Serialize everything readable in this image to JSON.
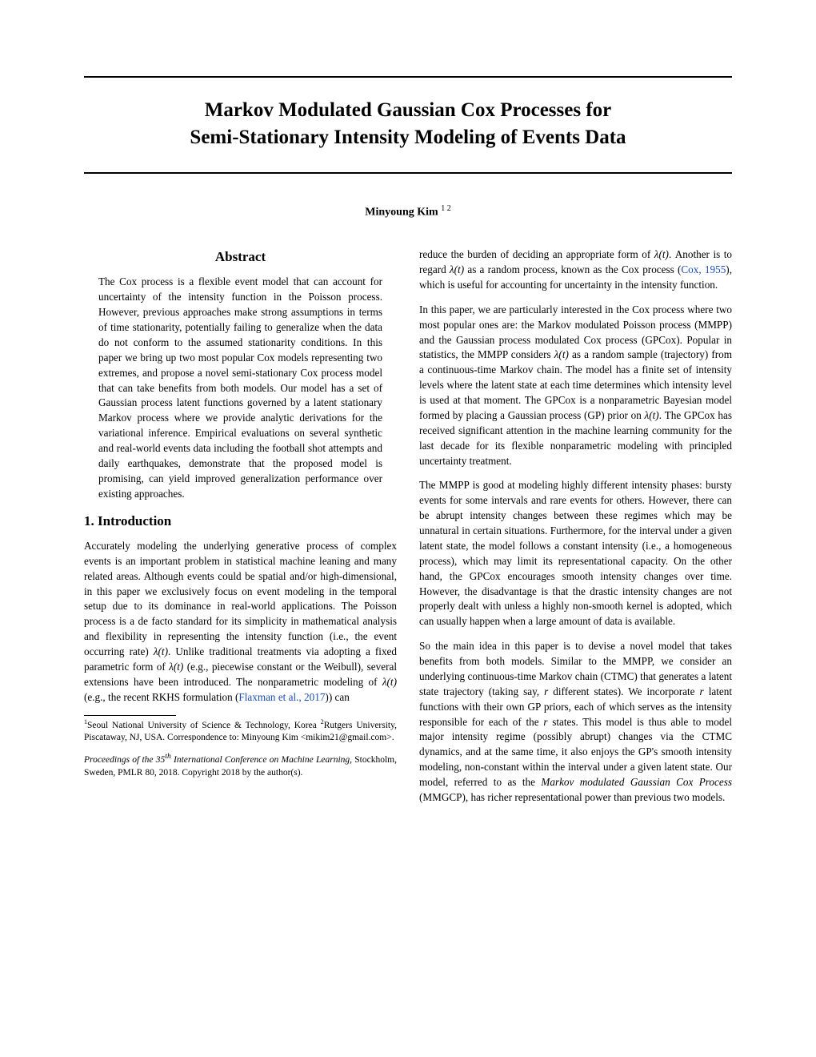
{
  "title_line1": "Markov Modulated Gaussian Cox Processes for",
  "title_line2": "Semi-Stationary Intensity Modeling of Events Data",
  "author": "Minyoung Kim",
  "author_affil": "1 2",
  "abstract_heading": "Abstract",
  "abstract_body": "The Cox process is a flexible event model that can account for uncertainty of the intensity function in the Poisson process. However, previous approaches make strong assumptions in terms of time stationarity, potentially failing to generalize when the data do not conform to the assumed stationarity conditions. In this paper we bring up two most popular Cox models representing two extremes, and propose a novel semi-stationary Cox process model that can take benefits from both models. Our model has a set of Gaussian process latent functions governed by a latent stationary Markov process where we provide analytic derivations for the variational inference. Empirical evaluations on several synthetic and real-world events data including the football shot attempts and daily earthquakes, demonstrate that the proposed model is promising, can yield improved generalization performance over existing approaches.",
  "section1_heading": "1. Introduction",
  "left_para1_a": "Accurately modeling the underlying generative process of complex events is an important problem in statistical machine leaning and many related areas. Although events could be spatial and/or high-dimensional, in this paper we exclusively focus on event modeling in the temporal setup due to its dominance in real-world applications. The Poisson process is a de facto standard for its simplicity in mathematical analysis and flexibility in representing the intensity function (i.e., the event occurring rate) ",
  "left_para1_b": ". Unlike traditional treatments via adopting a fixed parametric form of ",
  "left_para1_c": " (e.g., piecewise constant or the Weibull), several extensions have been introduced. The nonparametric modeling of ",
  "left_para1_d": " (e.g., the recent RKHS formulation (",
  "left_para1_cite": "Flaxman et al., 2017",
  "left_para1_e": ")) can",
  "footnote_text_a": "Seoul National University of Science & Technology, Korea ",
  "footnote_text_b": "Rutgers University, Piscataway, NJ, USA. Correspondence to: Minyoung Kim <mikim21@gmail.com>.",
  "proceedings_a": "Proceedings of the ",
  "proceedings_b": " International Conference on Machine Learning",
  "proceedings_c": ", Stockholm, Sweden, PMLR 80, 2018. Copyright 2018 by the author(s).",
  "proceedings_num": "35",
  "proceedings_th": "th",
  "right_para1_a": "reduce the burden of deciding an appropriate form of ",
  "right_para1_b": ". Another is to regard ",
  "right_para1_c": " as a random process, known as the Cox process (",
  "right_para1_cite": "Cox, 1955",
  "right_para1_d": "), which is useful for accounting for uncertainty in the intensity function.",
  "right_para2_a": "In this paper, we are particularly interested in the Cox process where two most popular ones are: the Markov modulated Poisson process (MMPP) and the Gaussian process modulated Cox process (GPCox). Popular in statistics, the MMPP considers ",
  "right_para2_b": " as a random sample (trajectory) from a continuous-time Markov chain. The model has a finite set of intensity levels where the latent state at each time determines which intensity level is used at that moment. The GPCox is a nonparametric Bayesian model formed by placing a Gaussian process (GP) prior on ",
  "right_para2_c": ". The GPCox has received significant attention in the machine learning community for the last decade for its flexible nonparametric modeling with principled uncertainty treatment.",
  "right_para3": "The MMPP is good at modeling highly different intensity phases: bursty events for some intervals and rare events for others. However, there can be abrupt intensity changes between these regimes which may be unnatural in certain situations. Furthermore, for the interval under a given latent state, the model follows a constant intensity (i.e., a homogeneous process), which may limit its representational capacity. On the other hand, the GPCox encourages smooth intensity changes over time. However, the disadvantage is that the drastic intensity changes are not properly dealt with unless a highly non-smooth kernel is adopted, which can usually happen when a large amount of data is available.",
  "right_para4_a": "So the main idea in this paper is to devise a novel model that takes benefits from both models. Similar to the MMPP, we consider an underlying continuous-time Markov chain (CTMC) that generates a latent state trajectory (taking say, ",
  "right_para4_b": " different states). We incorporate ",
  "right_para4_c": " latent functions with their own GP priors, each of which serves as the intensity responsible for each of the ",
  "right_para4_d": " states. This model is thus able to model major intensity regime (possibly abrupt) changes via the CTMC dynamics, and at the same time, it also enjoys the GP's smooth intensity modeling, non-constant within the interval under a given latent state. Our model, referred to as the ",
  "right_para4_em": "Markov modulated Gaussian Cox Process",
  "right_para4_e": " (MMGCP), has richer representational power than previous two models.",
  "lambda_t": "λ(t)",
  "r_var": "r"
}
